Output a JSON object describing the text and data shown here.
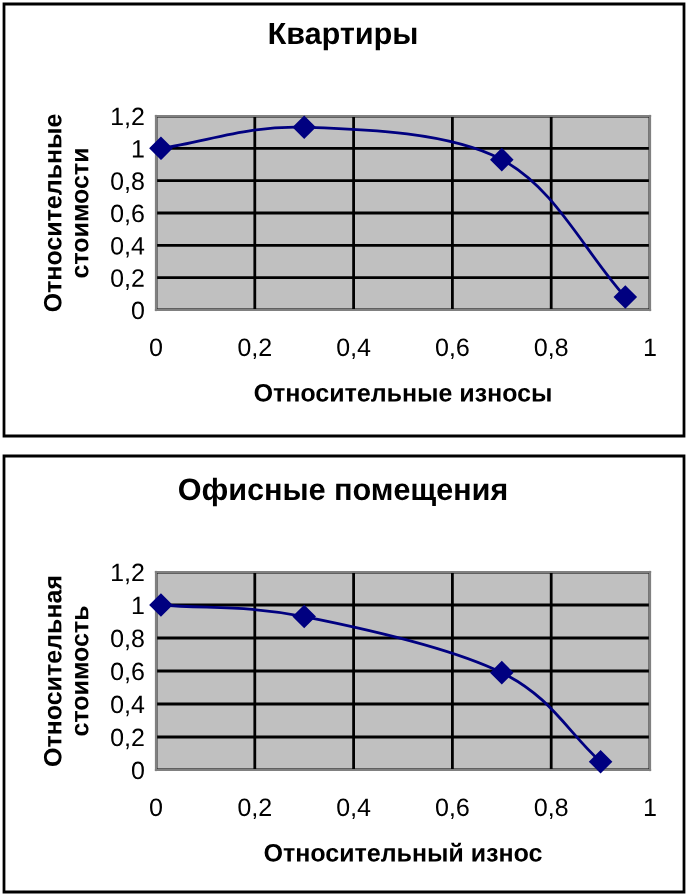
{
  "chart_data": [
    {
      "type": "line",
      "title": "Квартиры",
      "xlabel": "Относительные износы",
      "ylabel": "Относительные\nстоимости",
      "x": [
        0.01,
        0.3,
        0.7,
        0.95
      ],
      "series": [
        {
          "color": "#000080",
          "values": [
            1.0,
            1.13,
            0.93,
            0.08
          ]
        }
      ],
      "xlim": [
        0,
        1
      ],
      "ylim": [
        0,
        1.2
      ],
      "xticks": [
        0,
        {
          "value": 0.2,
          "label": "0,2"
        },
        {
          "value": 0.4,
          "label": "0,4"
        },
        {
          "value": 0.6,
          "label": "0,6"
        },
        {
          "value": 0.8,
          "label": "0,8"
        },
        1
      ],
      "yticks": [
        0,
        {
          "value": 0.2,
          "label": "0,2"
        },
        {
          "value": 0.4,
          "label": "0,4"
        },
        {
          "value": 0.6,
          "label": "0,6"
        },
        {
          "value": 0.8,
          "label": "0,8"
        },
        1,
        {
          "value": 1.2,
          "label": "1,2"
        }
      ],
      "grid": true,
      "legend": false,
      "marker": "diamond",
      "line_style": "solid"
    },
    {
      "type": "line",
      "title": "Офисные помещения",
      "xlabel": "Относительный износ",
      "ylabel": "Относительная\nстоимость",
      "x": [
        0.01,
        0.3,
        0.7,
        0.9
      ],
      "series": [
        {
          "color": "#000080",
          "values": [
            1.0,
            0.93,
            0.59,
            0.05
          ]
        }
      ],
      "xlim": [
        0,
        1
      ],
      "ylim": [
        0,
        1.2
      ],
      "xticks": [
        0,
        {
          "value": 0.2,
          "label": "0,2"
        },
        {
          "value": 0.4,
          "label": "0,4"
        },
        {
          "value": 0.6,
          "label": "0,6"
        },
        {
          "value": 0.8,
          "label": "0,8"
        },
        1
      ],
      "yticks": [
        0,
        {
          "value": 0.2,
          "label": "0,2"
        },
        {
          "value": 0.4,
          "label": "0,4"
        },
        {
          "value": 0.6,
          "label": "0,6"
        },
        {
          "value": 0.8,
          "label": "0,8"
        },
        1,
        {
          "value": 1.2,
          "label": "1,2"
        }
      ],
      "grid": true,
      "legend": false,
      "marker": "diamond",
      "line_style": "solid"
    }
  ]
}
